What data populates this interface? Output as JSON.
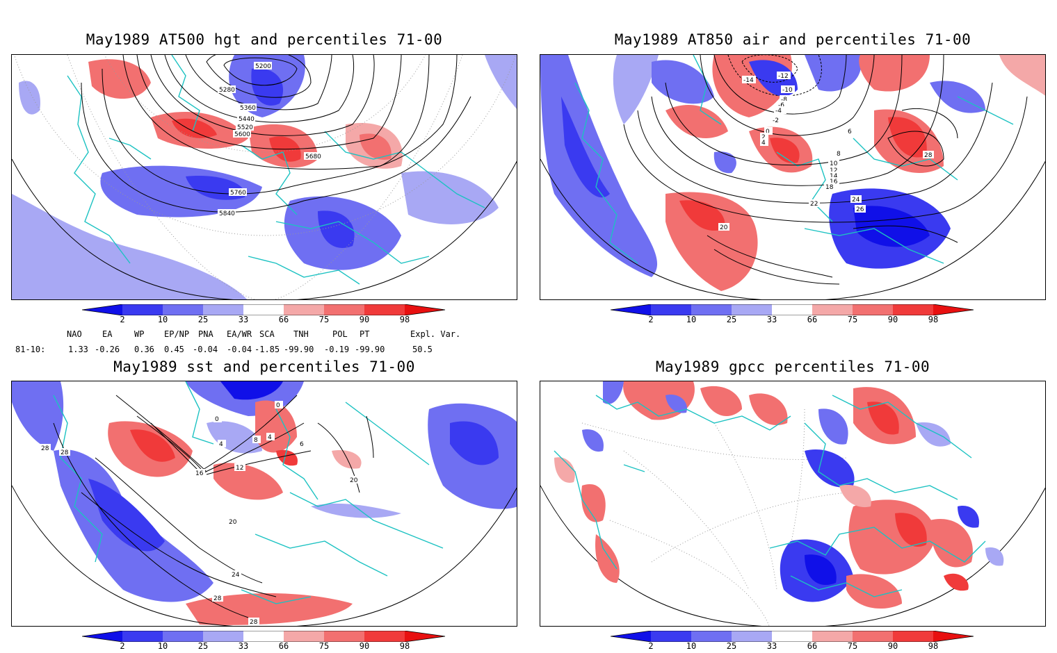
{
  "panels": [
    {
      "id": "p1",
      "title": "May1989 AT500 hgt and percentiles 71-00",
      "contour_labels": [
        "5200",
        "5280",
        "5360",
        "5440",
        "5520",
        "5600",
        "5680",
        "5760",
        "5840"
      ]
    },
    {
      "id": "p2",
      "title": "May1989 AT850 air and percentiles 71-00",
      "contour_labels": [
        "-14",
        "-12",
        "-10",
        "-8",
        "-6",
        "-4",
        "-2",
        "0",
        "2",
        "4",
        "6",
        "8",
        "10",
        "12",
        "14",
        "16",
        "18",
        "20",
        "22",
        "24",
        "26",
        "28"
      ]
    },
    {
      "id": "p3",
      "title": "May1989 sst and percentiles 71-00",
      "contour_labels": [
        "0",
        "4",
        "8",
        "12",
        "16",
        "20",
        "24",
        "28"
      ]
    },
    {
      "id": "p4",
      "title": "May1989 gpcc percentiles 71-00",
      "contour_labels": []
    }
  ],
  "colorbar": {
    "ticks": [
      "2",
      "10",
      "25",
      "33",
      "66",
      "75",
      "90",
      "98"
    ],
    "colors": {
      "below2": "#1010e8",
      "b2_10": "#3a3af0",
      "b10_25": "#6f6ff2",
      "b25_33": "#a8a8f4",
      "neutral": "#ffffff",
      "a66_75": "#f4a8a8",
      "a75_90": "#f27070",
      "a90_98": "#f03a3a",
      "above98": "#e81010"
    }
  },
  "indices": {
    "headers": [
      "NAO",
      "EA",
      "WP",
      "EP/NP",
      "PNA",
      "EA/WR",
      "SCA",
      "TNH",
      "POL",
      "PT",
      "Expl. Var."
    ],
    "row_label": "81-10:",
    "values": [
      "1.33",
      "-0.26",
      "0.36",
      "0.45",
      "-0.04",
      "-0.04",
      "-1.85",
      "-99.90",
      "-0.19",
      "-99.90",
      "50.5"
    ]
  },
  "colors": {
    "coast": "#1cc2c2",
    "contour": "#000000",
    "grid": "#888888"
  }
}
